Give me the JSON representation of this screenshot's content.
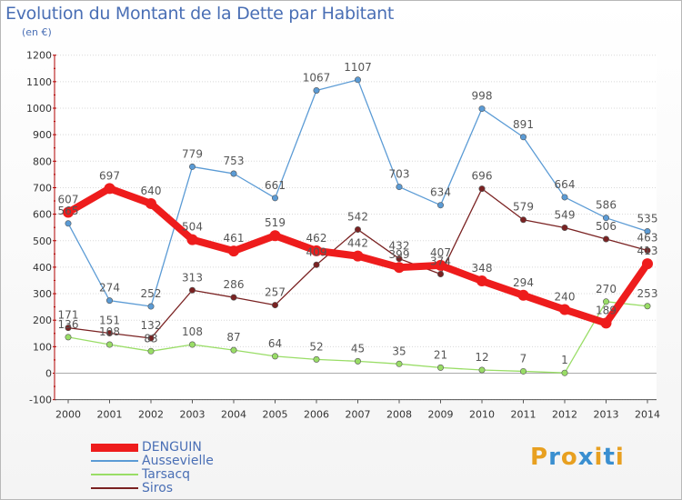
{
  "title": "Evolution du Montant de la Dette par Habitant",
  "subtitle": "(en €)",
  "logo": [
    "P",
    "r",
    "o",
    "x",
    "i",
    "t",
    "i"
  ],
  "logo_colors": [
    "#e8a020",
    "#3a8fd0",
    "#e8a020",
    "#3a8fd0",
    "#e8a020",
    "#3a8fd0",
    "#e8a020"
  ],
  "chart_data": {
    "type": "line",
    "title": "Evolution du Montant de la Dette par Habitant",
    "ylabel": "(en €)",
    "xlabel": "",
    "categories": [
      "2000",
      "2001",
      "2002",
      "2003",
      "2004",
      "2005",
      "2006",
      "2007",
      "2008",
      "2009",
      "2010",
      "2011",
      "2012",
      "2013",
      "2014"
    ],
    "ylim": [
      -100,
      1200
    ],
    "yticks": [
      -100,
      0,
      100,
      200,
      300,
      400,
      500,
      600,
      700,
      800,
      900,
      1000,
      1100,
      1200
    ],
    "ytick_labels": [
      "-100",
      "0",
      "100",
      "200",
      "300",
      "400",
      "500",
      "600",
      "700",
      "800",
      "900",
      "1000",
      "1100",
      "1200"
    ],
    "legend_position": "bottom-left",
    "series": [
      {
        "name": "DENGUIN",
        "color": "#ee1c1c",
        "bold": true,
        "values": [
          607,
          697,
          640,
          504,
          461,
          519,
          462,
          442,
          399,
          407,
          348,
          294,
          240,
          189,
          413
        ],
        "labels": [
          "607",
          "697",
          "640",
          "504",
          "461",
          "519",
          "462",
          "442",
          "399",
          "407",
          "348",
          "294",
          "240",
          "189",
          "413"
        ]
      },
      {
        "name": "Aussevielle",
        "color": "#5b9bd5",
        "bold": false,
        "values": [
          565,
          274,
          252,
          779,
          753,
          661,
          1067,
          1107,
          703,
          634,
          998,
          891,
          664,
          586,
          535
        ],
        "labels": [
          "565",
          "274",
          "252",
          "779",
          "753",
          "661",
          "1067",
          "1107",
          "703",
          "634",
          "998",
          "891",
          "664",
          "586",
          "535"
        ]
      },
      {
        "name": "Tarsacq",
        "color": "#99dd66",
        "bold": false,
        "values": [
          136,
          108,
          83,
          108,
          87,
          64,
          52,
          45,
          35,
          21,
          12,
          7,
          1,
          270,
          253
        ],
        "labels": [
          "136",
          "108",
          "83",
          "108",
          "87",
          "64",
          "52",
          "45",
          "35",
          "21",
          "12",
          "7",
          "1",
          "270",
          "253"
        ]
      },
      {
        "name": "Siros",
        "color": "#7a2222",
        "bold": false,
        "values": [
          171,
          151,
          132,
          313,
          286,
          257,
          409,
          542,
          432,
          374,
          696,
          579,
          549,
          506,
          463
        ],
        "labels": [
          "171",
          "151",
          "132",
          "313",
          "286",
          "257",
          "409",
          "542",
          "432",
          "374",
          "696",
          "579",
          "549",
          "506",
          "463"
        ]
      }
    ]
  }
}
